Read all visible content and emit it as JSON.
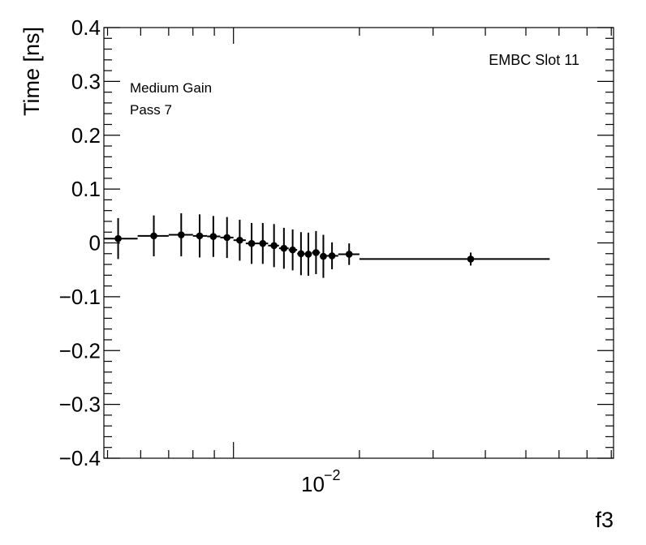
{
  "chart_data": {
    "type": "scatter",
    "title": "",
    "xlabel": "f3",
    "ylabel": "Time [ns]",
    "x_scale": "log",
    "xlim": [
      0.0049,
      0.081
    ],
    "ylim": [
      -0.4,
      0.4
    ],
    "yticks": [
      {
        "value": 0.4,
        "label": "0.4"
      },
      {
        "value": 0.3,
        "label": "0.3"
      },
      {
        "value": 0.2,
        "label": "0.2"
      },
      {
        "value": 0.1,
        "label": "0.1"
      },
      {
        "value": 0.0,
        "label": "0"
      },
      {
        "value": -0.1,
        "label": "−0.1"
      },
      {
        "value": -0.2,
        "label": "−0.2"
      },
      {
        "value": -0.3,
        "label": "−0.3"
      },
      {
        "value": -0.4,
        "label": "−0.4"
      }
    ],
    "xtick_label": {
      "base": "10",
      "exponent": "−2"
    },
    "annotations": {
      "top_right": "EMBC Slot 11",
      "line1": "Medium Gain",
      "line2": "Pass 7"
    },
    "points": [
      {
        "x": 0.0053,
        "y": 0.008,
        "xlow": 0.0049,
        "xhigh": 0.0059,
        "err": 0.038
      },
      {
        "x": 0.00645,
        "y": 0.013,
        "xlow": 0.0059,
        "xhigh": 0.007,
        "err": 0.038
      },
      {
        "x": 0.0075,
        "y": 0.015,
        "xlow": 0.007,
        "xhigh": 0.008,
        "err": 0.04
      },
      {
        "x": 0.0083,
        "y": 0.013,
        "xlow": 0.008,
        "xhigh": 0.00865,
        "err": 0.04
      },
      {
        "x": 0.00895,
        "y": 0.012,
        "xlow": 0.00865,
        "xhigh": 0.0093,
        "err": 0.038
      },
      {
        "x": 0.00965,
        "y": 0.01,
        "xlow": 0.0093,
        "xhigh": 0.01,
        "err": 0.038
      },
      {
        "x": 0.01035,
        "y": 0.005,
        "xlow": 0.01,
        "xhigh": 0.0107,
        "err": 0.038
      },
      {
        "x": 0.01105,
        "y": -0.001,
        "xlow": 0.0107,
        "xhigh": 0.0114,
        "err": 0.038
      },
      {
        "x": 0.01175,
        "y": -0.001,
        "xlow": 0.0114,
        "xhigh": 0.0121,
        "err": 0.038
      },
      {
        "x": 0.0125,
        "y": -0.005,
        "xlow": 0.0121,
        "xhigh": 0.01285,
        "err": 0.04
      },
      {
        "x": 0.0132,
        "y": -0.01,
        "xlow": 0.01285,
        "xhigh": 0.01355,
        "err": 0.038
      },
      {
        "x": 0.01385,
        "y": -0.013,
        "xlow": 0.01355,
        "xhigh": 0.0142,
        "err": 0.038
      },
      {
        "x": 0.0145,
        "y": -0.02,
        "xlow": 0.0142,
        "xhigh": 0.0148,
        "err": 0.04
      },
      {
        "x": 0.0151,
        "y": -0.021,
        "xlow": 0.0148,
        "xhigh": 0.0154,
        "err": 0.04
      },
      {
        "x": 0.01575,
        "y": -0.018,
        "xlow": 0.0154,
        "xhigh": 0.0161,
        "err": 0.04
      },
      {
        "x": 0.0164,
        "y": -0.025,
        "xlow": 0.0161,
        "xhigh": 0.0167,
        "err": 0.04
      },
      {
        "x": 0.0172,
        "y": -0.024,
        "xlow": 0.0167,
        "xhigh": 0.0178,
        "err": 0.025
      },
      {
        "x": 0.0189,
        "y": -0.021,
        "xlow": 0.0178,
        "xhigh": 0.02,
        "err": 0.02
      },
      {
        "x": 0.0369,
        "y": -0.03,
        "xlow": 0.02,
        "xhigh": 0.057,
        "err": 0.012
      }
    ]
  }
}
